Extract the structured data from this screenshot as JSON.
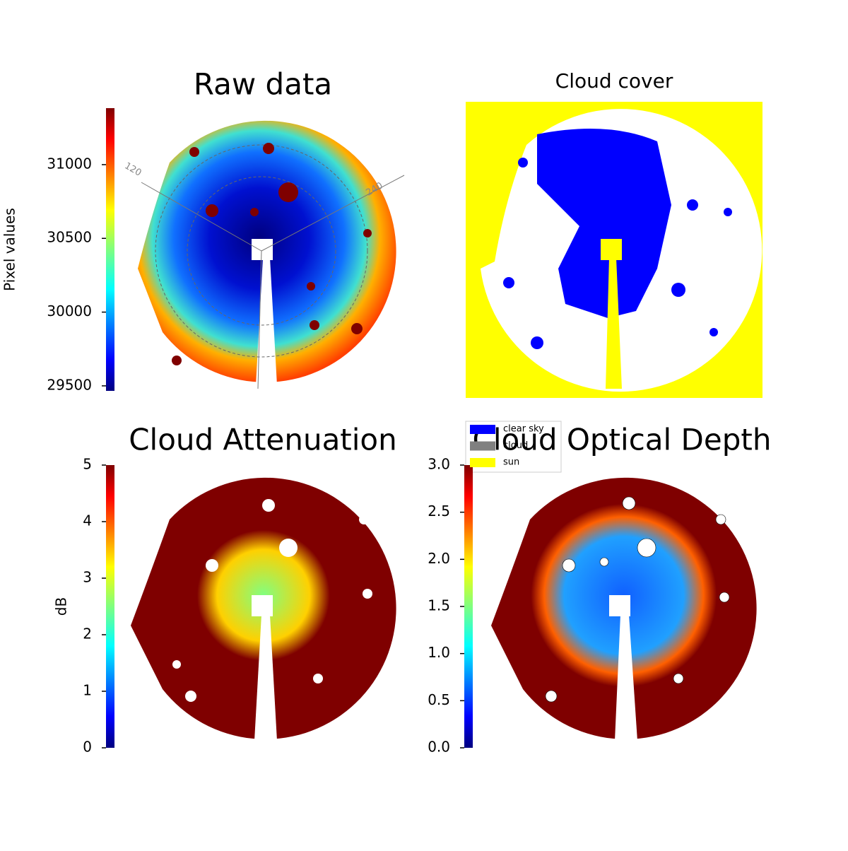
{
  "chart_data": [
    {
      "type": "image",
      "title": "Raw data",
      "colorbar_label": "Pixel values",
      "colormap": "jet",
      "ylim": [
        29466,
        31383
      ],
      "yticks": [
        29500,
        30000,
        30500,
        31000
      ],
      "annotations": [
        "120",
        "240"
      ]
    },
    {
      "type": "image",
      "title": "Cloud cover",
      "series": [
        {
          "name": "clear sky",
          "color": "#0000ff"
        },
        {
          "name": "cloud",
          "color": "#808080"
        },
        {
          "name": "sun",
          "color": "#ffff00"
        }
      ],
      "legend": "lower left"
    },
    {
      "type": "image",
      "title": "Cloud Attenuation",
      "colorbar_label": "dB",
      "colormap": "jet",
      "ylim": [
        0,
        5
      ],
      "yticks": [
        0,
        1,
        2,
        3,
        4,
        5
      ]
    },
    {
      "type": "image",
      "title": "Cloud Optical Depth",
      "colormap": "jet",
      "ylim": [
        0,
        3
      ],
      "yticks": [
        {
          "value": 0,
          "label": "0.0"
        },
        0.5,
        {
          "value": 1,
          "label": "1.0"
        },
        1.5,
        {
          "value": 2,
          "label": "2.0"
        },
        2.5,
        {
          "value": 3,
          "label": "3.0"
        }
      ]
    }
  ]
}
